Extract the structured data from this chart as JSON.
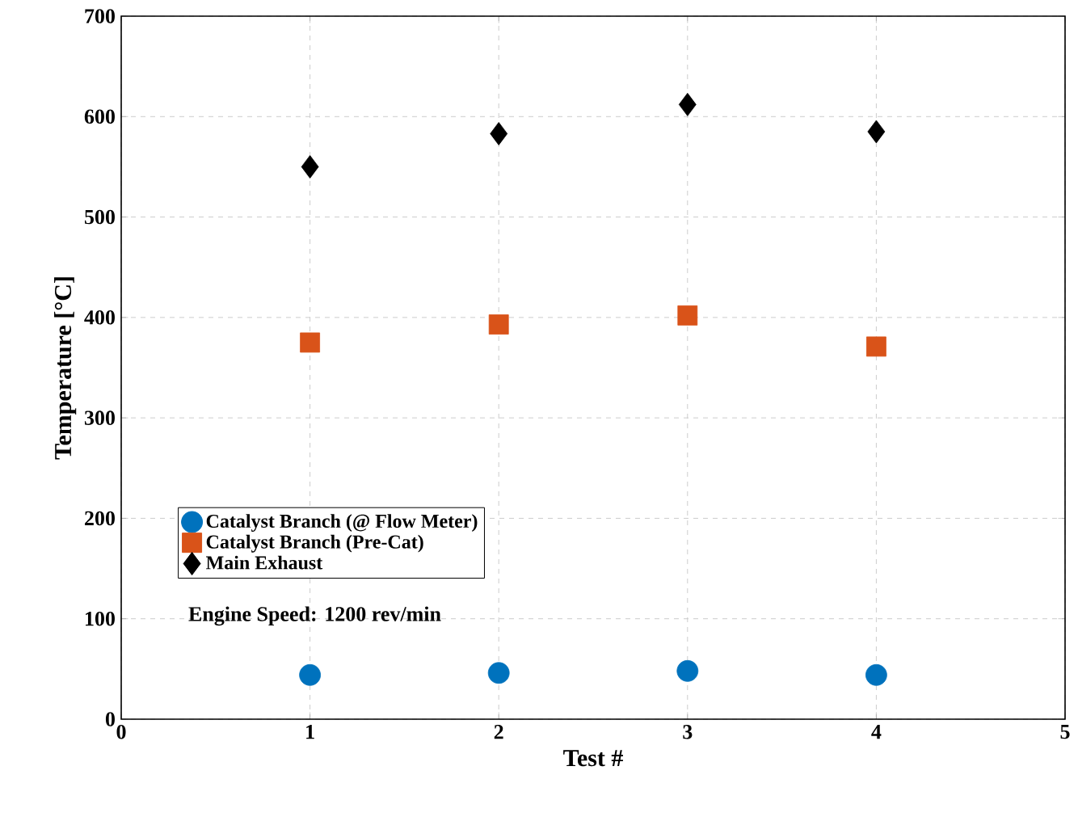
{
  "chart_data": {
    "type": "scatter",
    "xlabel": "Test #",
    "ylabel": "Temperature [°C]",
    "x": [
      1,
      2,
      3,
      4
    ],
    "series": [
      {
        "name": "Catalyst Branch (@ Flow Meter)",
        "color": "#0072bd",
        "marker": "circle",
        "values": [
          44,
          46,
          48,
          44
        ]
      },
      {
        "name": "Catalyst Branch (Pre-Cat)",
        "color": "#d95319",
        "marker": "square",
        "values": [
          375,
          393,
          402,
          371
        ]
      },
      {
        "name": "Main Exhaust",
        "color": "#000000",
        "marker": "diamond",
        "values": [
          550,
          583,
          612,
          585
        ]
      }
    ],
    "xlim": [
      0,
      5
    ],
    "xticks": [
      0,
      1,
      2,
      3,
      4,
      5
    ],
    "ylim": [
      0,
      700
    ],
    "yticks": [
      0,
      100,
      200,
      300,
      400,
      500,
      600,
      700
    ],
    "grid": true,
    "legend": "bottom left",
    "annotations": [
      "Engine Speed: 1200 rev/min"
    ]
  }
}
